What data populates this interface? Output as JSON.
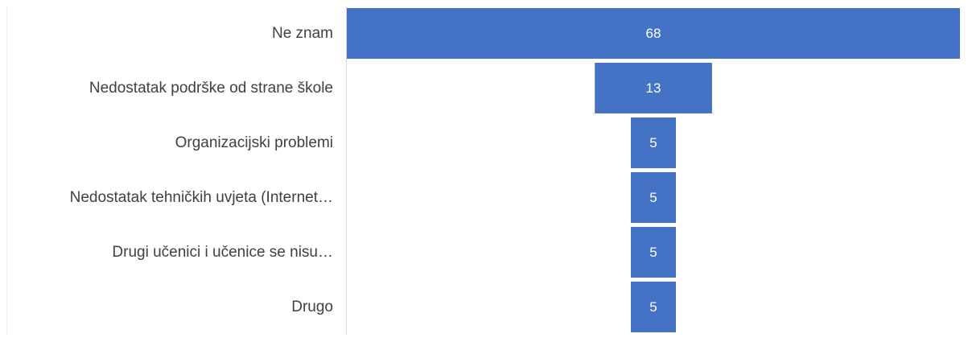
{
  "chart_data": {
    "type": "bar",
    "orientation": "horizontal",
    "style": "funnel",
    "categories": [
      "Ne znam",
      "Nedostatak podrške od strane škole",
      "Organizacijski problemi",
      "Nedostatak tehničkih uvjeta (Internet…",
      "Drugi učenici i učenice se nisu…",
      "Drugo"
    ],
    "values": [
      68,
      13,
      5,
      5,
      5,
      5
    ],
    "data_labels": [
      "68",
      "13",
      "5",
      "5",
      "5",
      "5"
    ],
    "title": "",
    "xlabel": "",
    "ylabel": "",
    "grid": false,
    "legend": "none",
    "colors": {
      "bar": "#4472C4",
      "data_label": "#FFFFFF",
      "category_label": "#404040",
      "axis": "#D9D9D9"
    }
  }
}
